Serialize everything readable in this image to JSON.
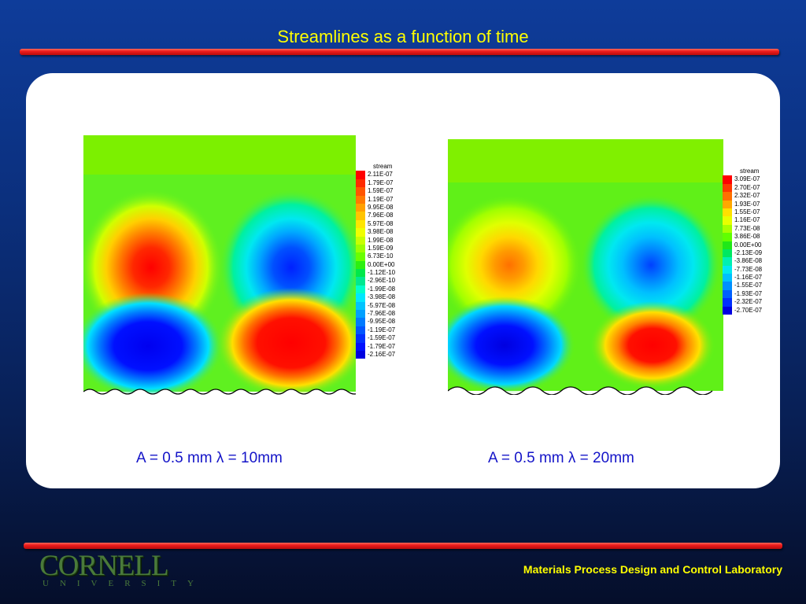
{
  "slide": {
    "title": "Streamlines as a function of time",
    "footer_lab": "Materials Process Design and Control Laboratory",
    "logo_word": "CORNELL",
    "logo_sub": "UNIVERSITY"
  },
  "plots": [
    {
      "caption": "A = 0.5 mm λ = 10mm",
      "legend_title": "stream",
      "legend_values": [
        "2.11E-07",
        "1.79E-07",
        "1.59E-07",
        "1.19E-07",
        "9.95E-08",
        "7.96E-08",
        "5.97E-08",
        "3.98E-08",
        "1.99E-08",
        "1.59E-09",
        "6.73E-10",
        "0.00E+00",
        "-1.12E-10",
        "-2.96E-10",
        "-1.99E-08",
        "-3.98E-08",
        "-5.97E-08",
        "-7.96E-08",
        "-9.95E-08",
        "-1.19E-07",
        "-1.59E-07",
        "-1.79E-07",
        "-2.16E-07"
      ],
      "legend_colors": [
        "#ff0000",
        "#ff2a00",
        "#ff5500",
        "#ff7a00",
        "#ffa000",
        "#ffc400",
        "#ffe600",
        "#f0ff00",
        "#c8ff00",
        "#9cff00",
        "#6aff00",
        "#2cf010",
        "#00e84a",
        "#00e890",
        "#00ffcc",
        "#00e8ff",
        "#00c4ff",
        "#00a0ff",
        "#007aff",
        "#0055ff",
        "#0030ff",
        "#0010ff",
        "#0000e0"
      ]
    },
    {
      "caption": "A = 0.5 mm λ = 20mm",
      "legend_title": "stream",
      "legend_values": [
        "3.09E-07",
        "2.70E-07",
        "2.32E-07",
        "1.93E-07",
        "1.55E-07",
        "1.16E-07",
        "7.73E-08",
        "3.86E-08",
        "0.00E+00",
        "-2.13E-09",
        "-3.86E-08",
        "-7.73E-08",
        "-1.16E-07",
        "-1.55E-07",
        "-1.93E-07",
        "-2.32E-07",
        "-2.70E-07"
      ],
      "legend_colors": [
        "#ff0000",
        "#ff3800",
        "#ff7000",
        "#ffa800",
        "#ffe000",
        "#e8ff00",
        "#a8ff00",
        "#60ff00",
        "#20e818",
        "#00e860",
        "#00f0b0",
        "#00e8f0",
        "#00c0ff",
        "#0090ff",
        "#0060ff",
        "#0030ff",
        "#0000e0"
      ]
    }
  ]
}
